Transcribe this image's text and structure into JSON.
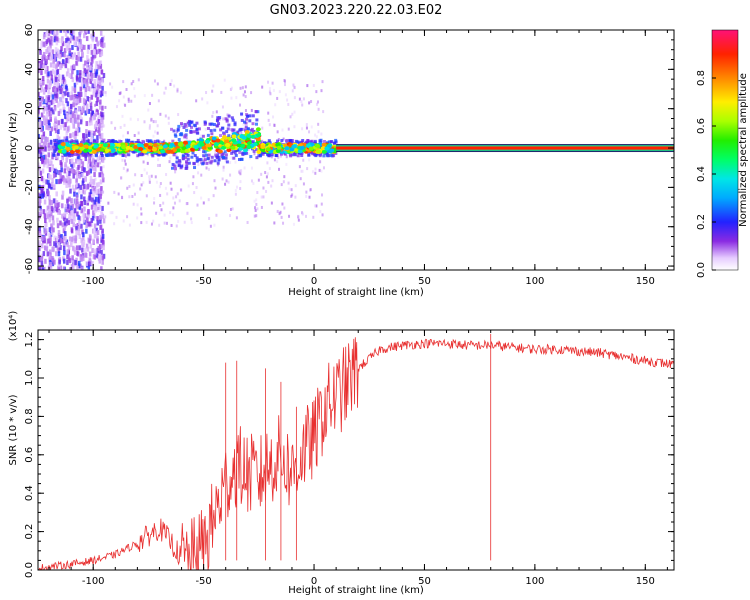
{
  "title": "GN03.2023.220.22.03.E02",
  "chart_data": [
    {
      "type": "heatmap",
      "title": "",
      "xlabel": "Height of straight line (km)",
      "ylabel": "Frequency (Hz)",
      "xlim": [
        -125,
        163
      ],
      "ylim": [
        -62,
        60
      ],
      "xticks": [
        -100,
        -50,
        0,
        50,
        100,
        150
      ],
      "yticks": [
        -60,
        -40,
        -20,
        0,
        20,
        40,
        60
      ],
      "colorbar": {
        "label": "Normalized spectral amplitude",
        "range": [
          0,
          1
        ],
        "ticks": [
          "0.0",
          "0.2",
          "0.4",
          "0.6",
          "0.8"
        ]
      },
      "features": [
        {
          "name": "scattered noise",
          "x_range": [
            -125,
            -100
          ],
          "y_range": [
            -60,
            60
          ]
        },
        {
          "name": "signal track",
          "x_range": [
            -115,
            10
          ],
          "y_approx": 0
        },
        {
          "name": "steady line",
          "x_range": [
            10,
            163
          ],
          "y": 0,
          "amplitude": 0.9
        }
      ]
    },
    {
      "type": "line",
      "title": "",
      "xlabel": "Height of straight line (km)",
      "ylabel": "SNR (10 * v/v)",
      "y_multiplier": "(x10⁴)",
      "xlim": [
        -125,
        163
      ],
      "ylim": [
        0,
        1.25
      ],
      "xticks": [
        -100,
        -50,
        0,
        50,
        100,
        150
      ],
      "yticks": [
        "0.0",
        "0.2",
        "0.4",
        "0.6",
        "0.8",
        "1.0",
        "1.2"
      ],
      "series": [
        {
          "color": "#e83030",
          "x": [
            -125,
            -110,
            -100,
            -90,
            -80,
            -75,
            -70,
            -65,
            -60,
            -55,
            -50,
            -45,
            -40,
            -35,
            -30,
            -25,
            -20,
            -15,
            -10,
            -5,
            0,
            5,
            10,
            15,
            20,
            25,
            30,
            40,
            50,
            60,
            70,
            80,
            90,
            100,
            110,
            120,
            130,
            140,
            150,
            163
          ],
          "y": [
            0.01,
            0.03,
            0.05,
            0.08,
            0.14,
            0.18,
            0.22,
            0.15,
            0.06,
            0.05,
            0.12,
            0.28,
            0.45,
            0.55,
            0.5,
            0.48,
            0.55,
            0.6,
            0.5,
            0.62,
            0.68,
            0.85,
            0.9,
            0.97,
            1.05,
            1.1,
            1.15,
            1.17,
            1.18,
            1.18,
            1.17,
            1.17,
            1.16,
            1.15,
            1.15,
            1.14,
            1.13,
            1.11,
            1.09,
            1.07
          ]
        }
      ],
      "spikes": [
        {
          "x": -40,
          "y": 1.08
        },
        {
          "x": -35,
          "y": 1.09
        },
        {
          "x": -22,
          "y": 1.05
        },
        {
          "x": -15,
          "y": 0.98
        },
        {
          "x": -8,
          "y": 0.85
        },
        {
          "x": 80,
          "y": 1.23
        }
      ]
    }
  ]
}
